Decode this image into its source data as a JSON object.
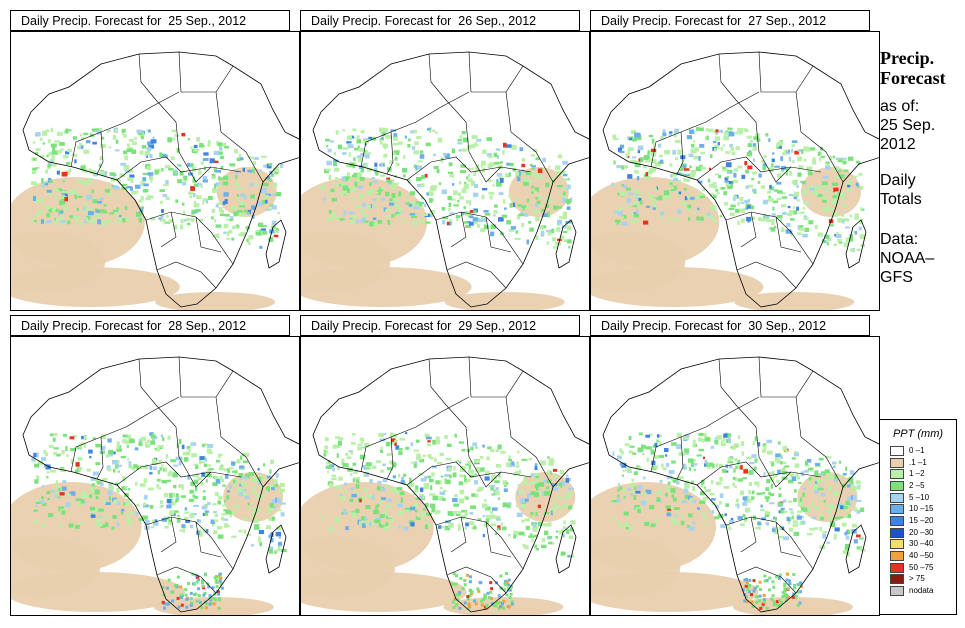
{
  "panels": [
    {
      "title": "Daily Precip. Forecast for  25 Sep., 2012"
    },
    {
      "title": "Daily Precip. Forecast for  26 Sep., 2012"
    },
    {
      "title": "Daily Precip. Forecast for  27 Sep., 2012"
    },
    {
      "title": "Daily Precip. Forecast for  28 Sep., 2012"
    },
    {
      "title": "Daily Precip. Forecast for  29 Sep., 2012"
    },
    {
      "title": "Daily Precip. Forecast for  30 Sep., 2012"
    }
  ],
  "side": {
    "heading_line1": "Precip.",
    "heading_line2": "Forecast",
    "asof_label": "as of:",
    "asof_date1": "25 Sep.",
    "asof_date2": "2012",
    "daily1": "Daily",
    "daily2": "Totals",
    "data_label": "Data:",
    "data_src1": "NOAA–",
    "data_src2": "GFS"
  },
  "legend": {
    "title": "PPT (mm)",
    "items": [
      {
        "label": "0 –1",
        "color": "#ffffff"
      },
      {
        "label": ".1 –1",
        "color": "#e8cfae"
      },
      {
        "label": "1 –2",
        "color": "#b9f0a8"
      },
      {
        "label": "2 –5",
        "color": "#79e27a"
      },
      {
        "label": "5 –10",
        "color": "#a8d2ee"
      },
      {
        "label": "10 –15",
        "color": "#6aaeea"
      },
      {
        "label": "15 –20",
        "color": "#3e84e6"
      },
      {
        "label": "20 –30",
        "color": "#1e52c8"
      },
      {
        "label": "30 –40",
        "color": "#f5df6a"
      },
      {
        "label": "40 –50",
        "color": "#f5a03a"
      },
      {
        "label": "50 –75",
        "color": "#e8321c"
      },
      {
        "label": "> 75",
        "color": "#8b1a10"
      },
      {
        "label": "nodata",
        "color": "#c8c8c8"
      }
    ]
  }
}
